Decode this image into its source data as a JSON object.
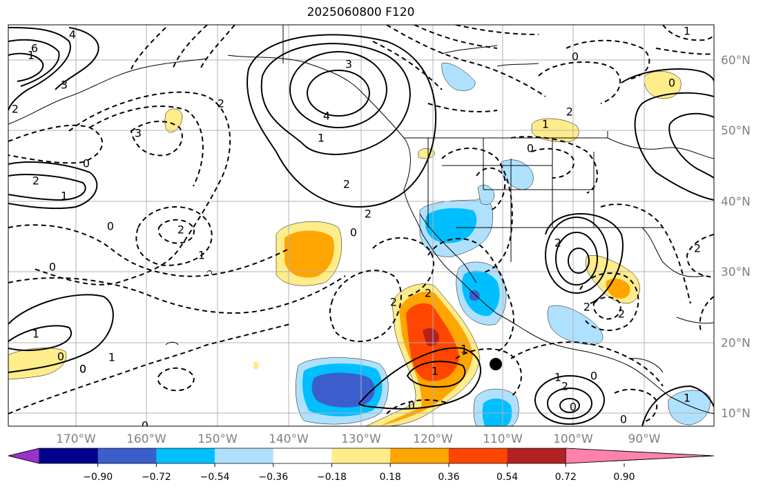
{
  "title": "2025060800 F120",
  "lon_ticks": [
    "170°W",
    "160°W",
    "150°W",
    "140°W",
    "130°W",
    "120°W",
    "110°W",
    "100°W",
    "90°W"
  ],
  "lat_ticks": [
    "60°N",
    "50°N",
    "40°N",
    "30°N",
    "20°N",
    "10°N"
  ],
  "colorbar": {
    "ticks": [
      "−0.90",
      "−0.72",
      "−0.54",
      "−0.36",
      "−0.18",
      "0.18",
      "0.36",
      "0.54",
      "0.72",
      "0.90"
    ],
    "colors": [
      "#9932cc",
      "#00008b",
      "#3a5fcd",
      "#00bfff",
      "#afe1ff",
      "#ffffff",
      "#ffec8b",
      "#ffa500",
      "#ff4500",
      "#b22222",
      "#ff82ab"
    ]
  },
  "contour_labels": [
    {
      "text": "6"
    },
    {
      "text": "4"
    },
    {
      "text": "3"
    },
    {
      "text": "2"
    },
    {
      "text": "1"
    },
    {
      "text": "0"
    },
    {
      "text": "2"
    },
    {
      "text": "1"
    },
    {
      "text": "3"
    },
    {
      "text": "2"
    },
    {
      "text": "0"
    },
    {
      "text": "2"
    },
    {
      "text": "1"
    },
    {
      "text": "0"
    },
    {
      "text": "0"
    },
    {
      "text": "3"
    },
    {
      "text": "4"
    },
    {
      "text": "1"
    },
    {
      "text": "2"
    },
    {
      "text": "2"
    },
    {
      "text": "0"
    },
    {
      "text": "2"
    },
    {
      "text": "1"
    },
    {
      "text": "0"
    },
    {
      "text": "0"
    },
    {
      "text": "1"
    },
    {
      "text": "0"
    },
    {
      "text": "0"
    },
    {
      "text": "1"
    },
    {
      "text": "0"
    },
    {
      "text": "2"
    },
    {
      "text": "2"
    },
    {
      "text": "1"
    },
    {
      "text": "0"
    },
    {
      "text": "2"
    },
    {
      "text": "1"
    },
    {
      "text": "2"
    },
    {
      "text": "2"
    },
    {
      "text": "0"
    },
    {
      "text": "0"
    },
    {
      "text": "1"
    },
    {
      "text": "2"
    },
    {
      "text": "1"
    },
    {
      "text": "0"
    },
    {
      "text": "0"
    },
    {
      "text": "2"
    },
    {
      "text": "1"
    }
  ]
}
